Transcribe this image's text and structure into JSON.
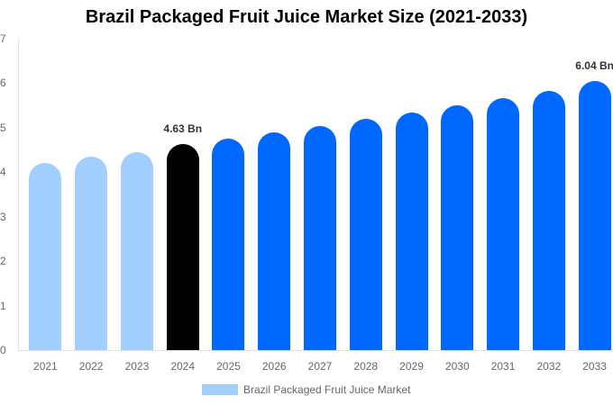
{
  "chart_data": {
    "type": "bar",
    "title": "Brazil Packaged Fruit Juice Market Size (2021-2033)",
    "xlabel": "",
    "ylabel": "",
    "ylim": [
      0,
      7
    ],
    "yticks": [
      0,
      1,
      2,
      3,
      4,
      5,
      6,
      7
    ],
    "grid": false,
    "legend_position": "bottom",
    "categories": [
      "2021",
      "2022",
      "2023",
      "2024",
      "2025",
      "2026",
      "2027",
      "2028",
      "2029",
      "2030",
      "2031",
      "2032",
      "2033"
    ],
    "series": [
      {
        "name": "Brazil Packaged Fruit Juice Market",
        "values": [
          4.21,
          4.35,
          4.45,
          4.63,
          4.76,
          4.9,
          5.04,
          5.2,
          5.34,
          5.5,
          5.67,
          5.83,
          6.04
        ],
        "colors": [
          "#a2cffe",
          "#a2cffe",
          "#a2cffe",
          "#000000",
          "#0068ff",
          "#0068ff",
          "#0068ff",
          "#0068ff",
          "#0068ff",
          "#0068ff",
          "#0068ff",
          "#0068ff",
          "#0068ff"
        ]
      }
    ],
    "annotations": [
      {
        "category": "2024",
        "text": "4.63 Bn"
      },
      {
        "category": "2033",
        "text": "6.04 Bn"
      }
    ]
  },
  "title": "Brazil Packaged Fruit Juice Market Size (2021-2033)",
  "legend": {
    "label": "Brazil Packaged Fruit Juice Market",
    "color": "#a2cffe"
  },
  "colors": {
    "historical": "#a2cffe",
    "base_year": "#000000",
    "forecast": "#0068ff"
  }
}
